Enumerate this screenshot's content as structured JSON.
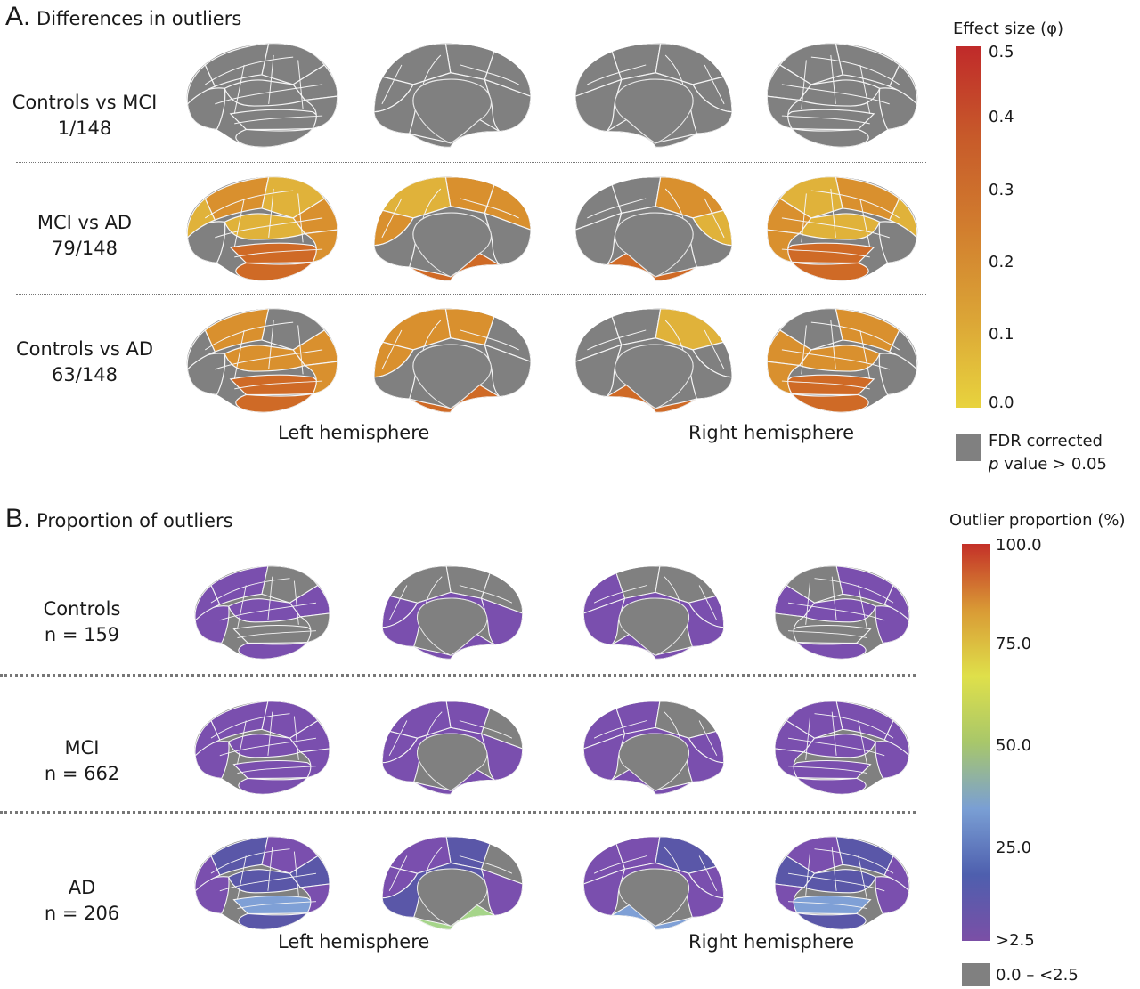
{
  "panel_a": {
    "letter": "A.",
    "title": "Differences in outliers",
    "rows": [
      {
        "label": "Controls vs MCI",
        "count": "1/148",
        "scheme": "none"
      },
      {
        "label": "MCI vs AD",
        "count": "79/148",
        "scheme": "mci_ad"
      },
      {
        "label": "Controls vs AD",
        "count": "63/148",
        "scheme": "ctrl_ad"
      }
    ],
    "left_label": "Left hemisphere",
    "right_label": "Right hemisphere",
    "legend": {
      "title": "Effect size (φ)",
      "ticks": [
        "0.5",
        "0.4",
        "0.3",
        "0.2",
        "0.1",
        "0.0"
      ],
      "range": [
        0.0,
        0.5
      ],
      "colors": [
        "#e8d33e",
        "#dba436",
        "#d17d2e",
        "#c75a2a",
        "#c02a2a"
      ],
      "gray_line1": "FDR corrected",
      "gray_p": "p",
      "gray_line2": " value > 0.05",
      "gray_color": "#808080"
    }
  },
  "panel_b": {
    "letter": "B.",
    "title": "Proportion of outliers",
    "rows": [
      {
        "label": "Controls",
        "count": "n = 159",
        "scheme": "controls"
      },
      {
        "label": "MCI",
        "count": "n = 662",
        "scheme": "mci"
      },
      {
        "label": "AD",
        "count": "n = 206",
        "scheme": "ad"
      }
    ],
    "left_label": "Left hemisphere",
    "right_label": "Right hemisphere",
    "legend": {
      "title": "Outlier proportion (%)",
      "ticks": [
        "100.0",
        "75.0",
        "50.0",
        "25.0",
        ">2.5"
      ],
      "range": [
        2.5,
        100.0
      ],
      "colors": [
        "#7b4fa6",
        "#4e5fae",
        "#7a9fd4",
        "#a8c76a",
        "#dfe04a",
        "#d99a35",
        "#c43028"
      ],
      "gray_label": "0.0 – <2.5",
      "gray_color": "#808080"
    }
  },
  "colors": {
    "gray": "#808080",
    "purple": "#7a4fae",
    "blue_purple": "#5a57a8",
    "light_blue": "#7fa0d6",
    "green": "#a6d58a",
    "yellow_orange": "#e0b23a",
    "orange": "#d9902e",
    "dark_orange": "#cf6a26",
    "red": "#c2382a"
  }
}
